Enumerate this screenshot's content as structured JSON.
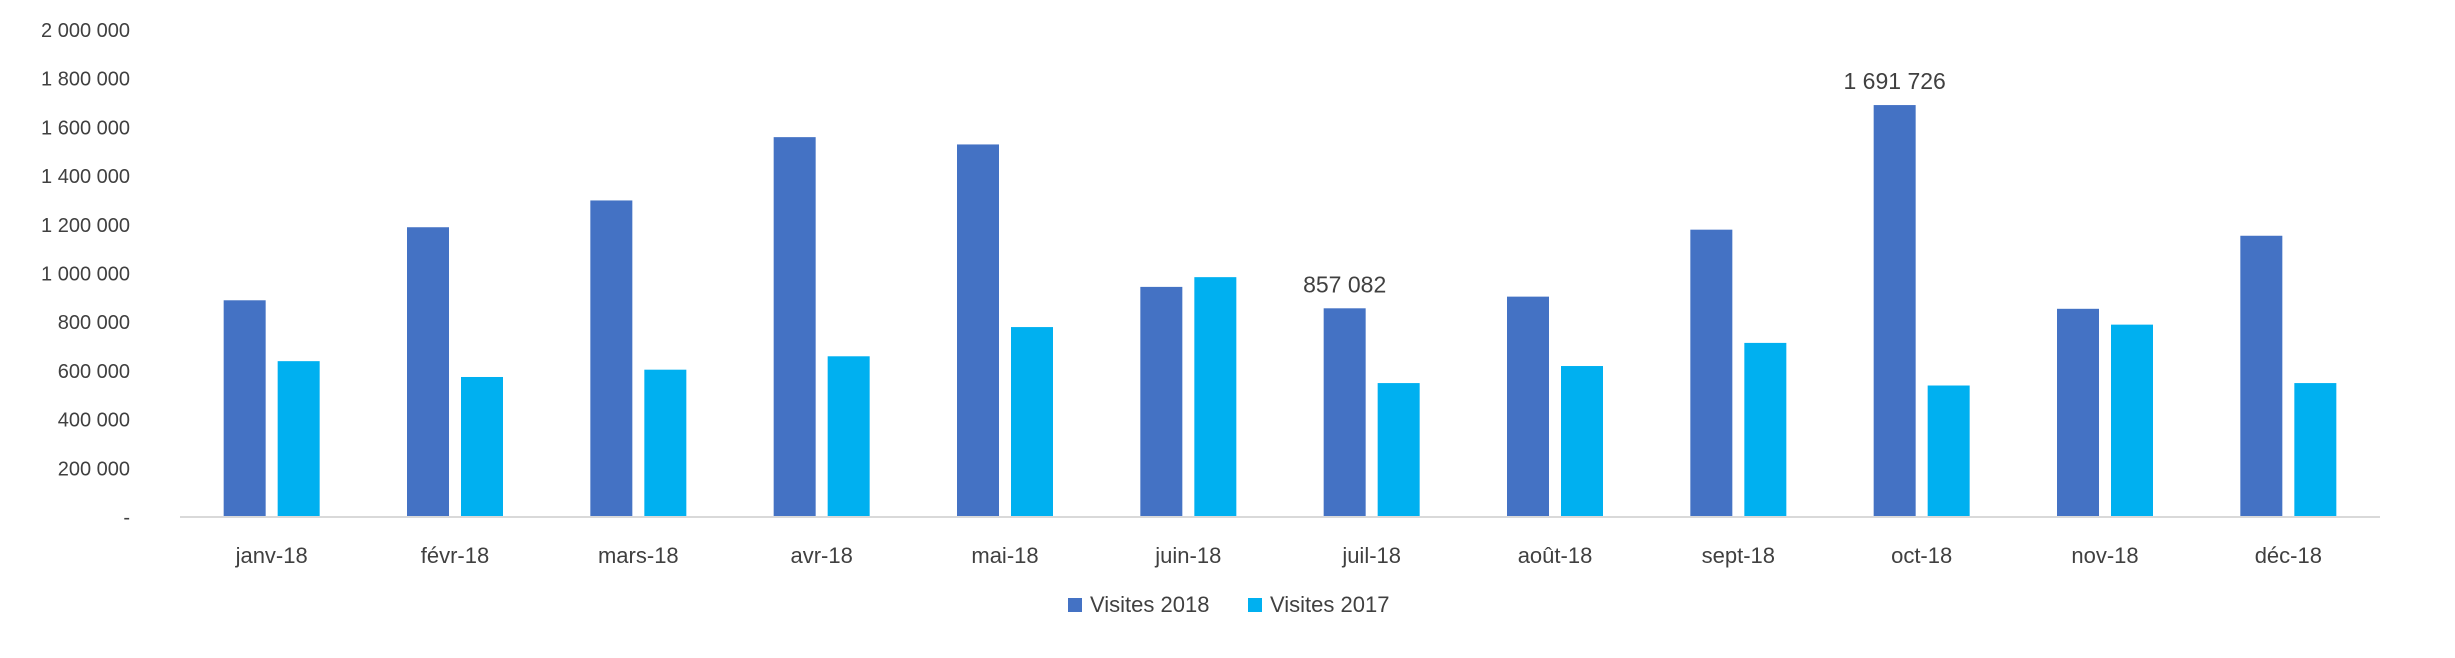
{
  "chart_data": {
    "type": "bar",
    "categories": [
      "janv-18",
      "févr-18",
      "mars-18",
      "avr-18",
      "mai-18",
      "juin-18",
      "juil-18",
      "août-18",
      "sept-18",
      "oct-18",
      "nov-18",
      "déc-18"
    ],
    "series": [
      {
        "name": "Visites 2018",
        "color": "#4472C4",
        "values": [
          890000,
          1190000,
          1300000,
          1560000,
          1530000,
          945000,
          857082,
          905000,
          1180000,
          1691726,
          855000,
          1155000
        ]
      },
      {
        "name": "Visites 2017",
        "color": "#00B0F0",
        "values": [
          640000,
          575000,
          605000,
          660000,
          780000,
          985000,
          550000,
          620000,
          715000,
          540000,
          790000,
          550000
        ]
      }
    ],
    "ylim": [
      0,
      2000000
    ],
    "yticks": [
      {
        "value": 0,
        "label": "-"
      },
      {
        "value": 200000,
        "label": "200 000"
      },
      {
        "value": 400000,
        "label": "400 000"
      },
      {
        "value": 600000,
        "label": "600 000"
      },
      {
        "value": 800000,
        "label": "800 000"
      },
      {
        "value": 1000000,
        "label": "1 000 000"
      },
      {
        "value": 1200000,
        "label": "1 200 000"
      },
      {
        "value": 1400000,
        "label": "1 400 000"
      },
      {
        "value": 1600000,
        "label": "1 600 000"
      },
      {
        "value": 1800000,
        "label": "1 800 000"
      },
      {
        "value": 2000000,
        "label": "2 000 000"
      }
    ],
    "data_labels": [
      {
        "series": 0,
        "category": "juil-18",
        "text": "857 082"
      },
      {
        "series": 0,
        "category": "oct-18",
        "text": "1 691 726"
      }
    ],
    "grid": false,
    "legend_position": "bottom-center",
    "title": "",
    "xlabel": "",
    "ylabel": ""
  }
}
